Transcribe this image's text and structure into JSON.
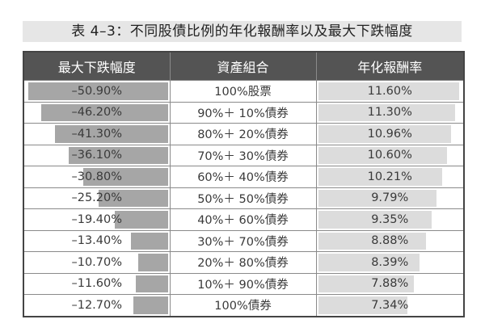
{
  "title": "表 4–3：不同股債比例的年化報酬率以及最大下跌幅度",
  "headers": [
    "最大下跌幅度",
    "資產組合",
    "年化報酬率"
  ],
  "rows": [
    {
      "drawdown": "–50.90%",
      "portfolio": "100%股票",
      "return": "11.60%",
      "drawdown_pct": 50.9,
      "return_pct": 11.6
    },
    {
      "drawdown": "–46.20%",
      "portfolio": "90%＋ 10%債券",
      "return": "11.30%",
      "drawdown_pct": 46.2,
      "return_pct": 11.3
    },
    {
      "drawdown": "–41.30%",
      "portfolio": "80%＋ 20%債券",
      "return": "10.96%",
      "drawdown_pct": 41.3,
      "return_pct": 10.96
    },
    {
      "drawdown": "–36.10%",
      "portfolio": "70%＋ 30%債券",
      "return": "10.60%",
      "drawdown_pct": 36.1,
      "return_pct": 10.6
    },
    {
      "drawdown": "–30.80%",
      "portfolio": "60%＋ 40%債券",
      "return": "10.21%",
      "drawdown_pct": 30.8,
      "return_pct": 10.21
    },
    {
      "drawdown": "–25.20%",
      "portfolio": "50%＋ 50%債券",
      "return": "9.79%",
      "drawdown_pct": 25.2,
      "return_pct": 9.79
    },
    {
      "drawdown": "–19.40%",
      "portfolio": "40%＋ 60%債券",
      "return": "9.35%",
      "drawdown_pct": 19.4,
      "return_pct": 9.35
    },
    {
      "drawdown": "–13.40%",
      "portfolio": "30%＋ 70%債券",
      "return": "8.88%",
      "drawdown_pct": 13.4,
      "return_pct": 8.88
    },
    {
      "drawdown": "–10.70%",
      "portfolio": "20%＋ 80%債券",
      "return": "8.39%",
      "drawdown_pct": 10.7,
      "return_pct": 8.39
    },
    {
      "drawdown": "–11.60%",
      "portfolio": "10%＋ 90%債券",
      "return": "7.88%",
      "drawdown_pct": 11.6,
      "return_pct": 7.88
    },
    {
      "drawdown": "–12.70%",
      "portfolio": "100%債券",
      "return": "7.34%",
      "drawdown_pct": 12.7,
      "return_pct": 7.34
    }
  ],
  "colors": {
    "header_bg": "#545454",
    "drawdown_bar": "#a6a6a6",
    "return_bar": "#dcdcdc",
    "title_bg": "#e6e6e6"
  }
}
